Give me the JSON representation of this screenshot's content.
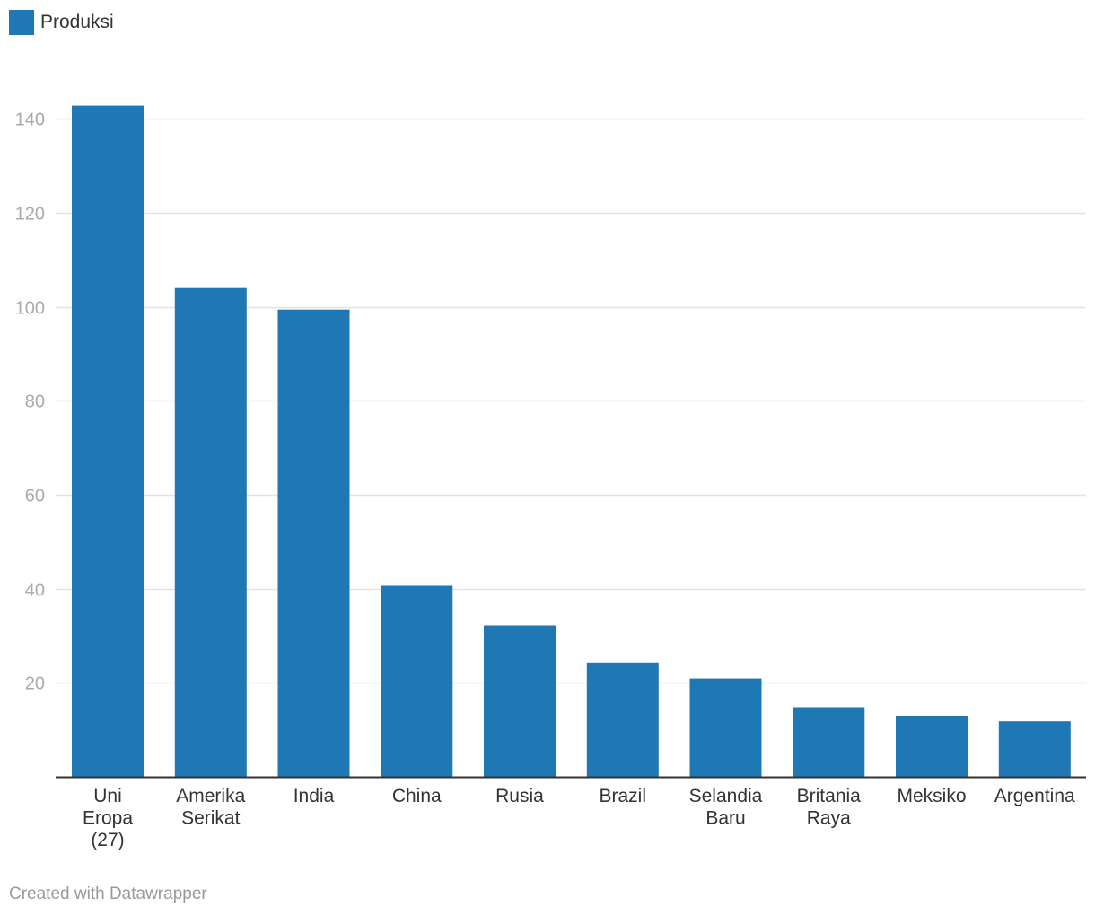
{
  "chart_data": {
    "type": "bar",
    "title": "",
    "xlabel": "",
    "ylabel": "",
    "categories": [
      "Uni Eropa (27)",
      "Amerika Serikat",
      "India",
      "China",
      "Rusia",
      "Brazil",
      "Selandia Baru",
      "Britania Raya",
      "Meksiko",
      "Argentina"
    ],
    "category_lines": [
      [
        "Uni",
        "Eropa",
        "(27)"
      ],
      [
        "Amerika",
        "Serikat"
      ],
      [
        "India"
      ],
      [
        "China"
      ],
      [
        "Rusia"
      ],
      [
        "Brazil"
      ],
      [
        "Selandia",
        "Baru"
      ],
      [
        "Britania",
        "Raya"
      ],
      [
        "Meksiko"
      ],
      [
        "Argentina"
      ]
    ],
    "series": [
      {
        "name": "Produksi",
        "color": "#1f77b4",
        "values": [
          142.8,
          104.0,
          99.4,
          40.8,
          32.2,
          24.3,
          20.9,
          14.8,
          13.0,
          11.8
        ]
      }
    ],
    "ylim": [
      0,
      140
    ],
    "yticks": [
      20,
      40,
      60,
      80,
      100,
      120,
      140
    ],
    "grid": true,
    "legend": "top-left"
  },
  "legend": {
    "label": "Produksi",
    "color": "#1f77b4"
  },
  "credit": "Created with Datawrapper"
}
